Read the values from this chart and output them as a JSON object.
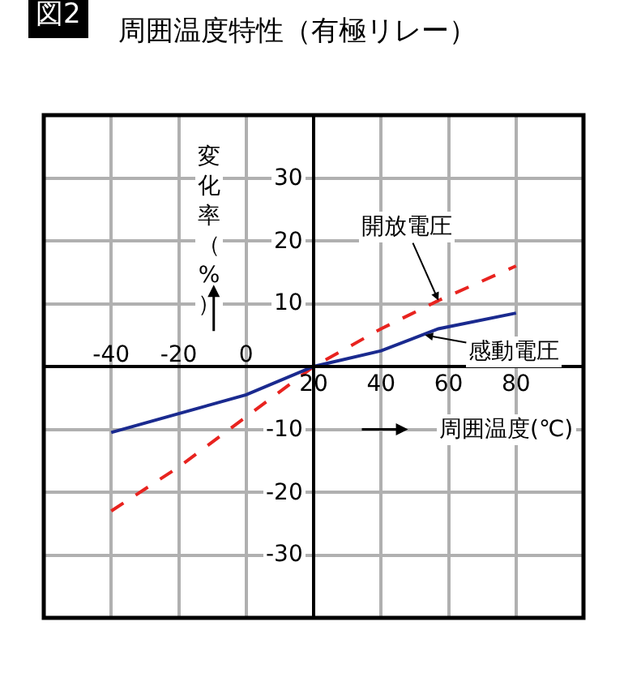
{
  "chart_data": {
    "type": "line",
    "title": "周囲温度特性（有極リレー）",
    "annotations": [
      "図2"
    ],
    "xlabel": "周囲温度(℃)",
    "ylabel": "変化率（%）",
    "x": [
      -40,
      -20,
      0,
      20,
      40,
      57,
      80
    ],
    "series": [
      {
        "name": "開放電圧",
        "color": "#e8231f",
        "line_style": "dashed",
        "values": [
          -23,
          -16,
          -8,
          0,
          6,
          10.5,
          16
        ]
      },
      {
        "name": "感動電圧",
        "color": "#1a2a8f",
        "line_style": "solid",
        "values": [
          -10.5,
          -7.5,
          -4.5,
          0,
          2.5,
          6,
          8.5
        ]
      }
    ],
    "xlim": [
      -60,
      100
    ],
    "ylim": [
      -40,
      40
    ],
    "xticks": [
      20,
      40,
      60,
      80
    ],
    "x2lim": [
      -60,
      100
    ],
    "x2ticks": [
      -40,
      -20,
      0
    ],
    "yticks": [
      -30,
      -20,
      -10,
      10,
      20,
      30
    ],
    "grid": true,
    "legend": false,
    "marker": "none"
  }
}
